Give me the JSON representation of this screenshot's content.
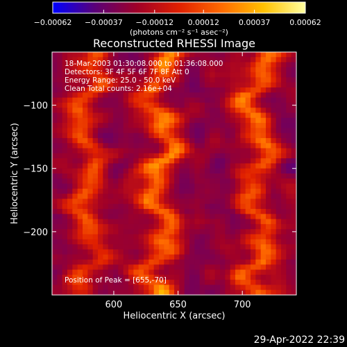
{
  "chart_data": {
    "type": "heatmap",
    "title": "Reconstructed RHESSI Image",
    "xlabel": "Heliocentric X (arcsec)",
    "ylabel": "Heliocentric Y (arcsec)",
    "xlim": [
      552,
      742
    ],
    "ylim": [
      -250,
      -58
    ],
    "x_ticks": [
      600,
      650,
      700
    ],
    "x_tick_labels": [
      "600",
      "650",
      "700"
    ],
    "y_ticks": [
      -100,
      -150,
      -200
    ],
    "y_tick_labels": [
      "−100",
      "−150",
      "−200"
    ],
    "colorbar": {
      "range": [
        -0.00062,
        0.00062
      ],
      "ticks": [
        -0.00062,
        -0.00037,
        -0.00012,
        0.00012,
        0.00037,
        0.00062
      ],
      "tick_labels": [
        "−0.00062",
        "−0.00037",
        "−0.00012",
        "0.00012",
        "0.00037",
        "0.00062"
      ],
      "units_text": "(photons cm⁻² s⁻¹ asec⁻²)",
      "colors": [
        "#0000ff",
        "#5a0078",
        "#a00028",
        "#e02000",
        "#ff6a00",
        "#ffc000",
        "#ffffa0"
      ]
    },
    "grid": false,
    "features": [
      {
        "description": "emission column",
        "x": 580,
        "y_from": -250,
        "y_to": -60,
        "peak": 0.00045
      },
      {
        "description": "emission column",
        "x": 636,
        "y_from": -250,
        "y_to": -60,
        "peak": 0.00062
      },
      {
        "description": "emission column",
        "x": 712,
        "y_from": -250,
        "y_to": -60,
        "peak": 0.00055
      }
    ],
    "peak_position": [
      655,
      -70
    ]
  },
  "annotations": {
    "line1": "18-Mar-2003 01:30:08.000 to 01:36:08.000",
    "line2": "Detectors: 3F 4F 5F 6F 7F 8F  Att 0",
    "line3": "Energy Range: 25.0 - 50.0 keV",
    "line4": "Clean    Total counts: 2.16e+04",
    "peak": "Position of Peak = [655,-70]"
  },
  "footer": {
    "timestamp": "29-Apr-2022 22:39"
  }
}
